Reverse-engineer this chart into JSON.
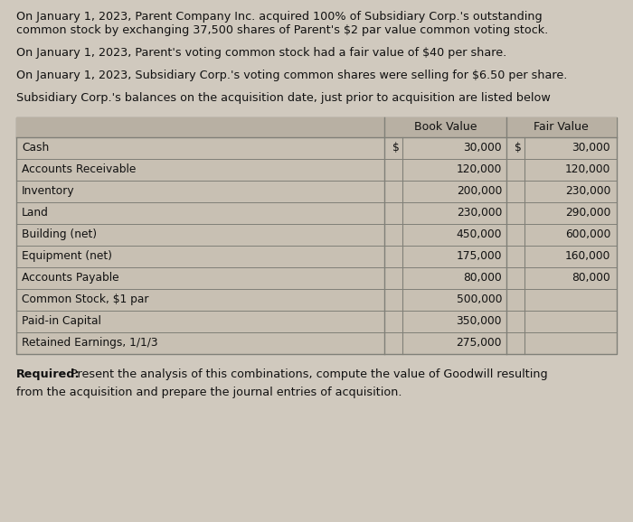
{
  "bg_color": "#d0c9be",
  "text_color": "#111111",
  "para1_line1": "On January 1, 2023, Parent Company Inc. acquired 100% of Subsidiary Corp.'s outstanding",
  "para1_line2": "common stock by exchanging 37,500 shares of Parent's $2 par value common voting stock.",
  "para2": "On January 1, 2023, Parent's voting common stock had a fair value of $40 per share.",
  "para3": "On January 1, 2023, Subsidiary Corp.'s voting common shares were selling for $6.50 per share.",
  "para4": "Subsidiary Corp.'s balances on the acquisition date, just prior to acquisition are listed below",
  "req_bold": "Required:",
  "req_rest": " Present the analysis of this combinations, compute the value of Goodwill resulting",
  "req_line2": "from the acquisition and prepare the journal entries of acquisition.",
  "table_header_col2": "Book Value",
  "table_header_col3": "Fair Value",
  "table_rows": [
    {
      "label": "Cash",
      "bv": "30,000",
      "fv": "30,000",
      "bv_dollar": true,
      "fv_dollar": true
    },
    {
      "label": "Accounts Receivable",
      "bv": "120,000",
      "fv": "120,000",
      "bv_dollar": false,
      "fv_dollar": false
    },
    {
      "label": "Inventory",
      "bv": "200,000",
      "fv": "230,000",
      "bv_dollar": false,
      "fv_dollar": false
    },
    {
      "label": "Land",
      "bv": "230,000",
      "fv": "290,000",
      "bv_dollar": false,
      "fv_dollar": false
    },
    {
      "label": "Building (net)",
      "bv": "450,000",
      "fv": "600,000",
      "bv_dollar": false,
      "fv_dollar": false
    },
    {
      "label": "Equipment (net)",
      "bv": "175,000",
      "fv": "160,000",
      "bv_dollar": false,
      "fv_dollar": false
    },
    {
      "label": "Accounts Payable",
      "bv": "80,000",
      "fv": "80,000",
      "bv_dollar": false,
      "fv_dollar": false
    },
    {
      "label": "Common Stock, $1 par",
      "bv": "500,000",
      "fv": "",
      "bv_dollar": false,
      "fv_dollar": false
    },
    {
      "label": "Paid-in Capital",
      "bv": "350,000",
      "fv": "",
      "bv_dollar": false,
      "fv_dollar": false
    },
    {
      "label": "Retained Earnings, 1/1/3",
      "bv": "275,000",
      "fv": "",
      "bv_dollar": false,
      "fv_dollar": false
    }
  ],
  "table_bg": "#c8c0b3",
  "table_header_bg": "#b8b0a3",
  "border_color": "#808078",
  "fs_body": 9.2,
  "fs_table": 8.8,
  "fs_header": 9.0
}
